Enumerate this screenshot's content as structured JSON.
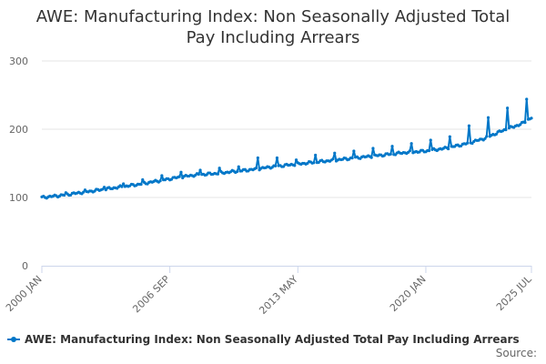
{
  "chart_data": {
    "type": "line",
    "title": "AWE: Manufacturing Index: Non Seasonally Adjusted Total Pay Including Arrears",
    "title_lines": [
      "AWE: Manufacturing Index: Non Seasonally Adjusted Total",
      "Pay Including Arrears"
    ],
    "xlabel": "",
    "ylabel": "",
    "ylim": [
      0,
      300
    ],
    "y_ticks": [
      0,
      100,
      200,
      300
    ],
    "x_range_months": [
      0,
      306
    ],
    "x_ticks": [
      {
        "label": "2000 JAN",
        "month_index": 0
      },
      {
        "label": "2006 SEP",
        "month_index": 80
      },
      {
        "label": "2013 MAY",
        "month_index": 160
      },
      {
        "label": "2020 JAN",
        "month_index": 240
      },
      {
        "label": "2025 JUL",
        "month_index": 306
      }
    ],
    "series": [
      {
        "name": "AWE: Manufacturing Index: Non Seasonally Adjusted Total Pay Including Arrears",
        "color": "#0077c8",
        "start": "2000 JAN",
        "frequency": "monthly",
        "anchors": [
          {
            "month_index": 0,
            "value": 100
          },
          {
            "month_index": 12,
            "value": 103
          },
          {
            "month_index": 24,
            "value": 107
          },
          {
            "month_index": 36,
            "value": 111
          },
          {
            "month_index": 48,
            "value": 115
          },
          {
            "month_index": 60,
            "value": 119
          },
          {
            "month_index": 72,
            "value": 124
          },
          {
            "month_index": 84,
            "value": 129
          },
          {
            "month_index": 96,
            "value": 133
          },
          {
            "month_index": 108,
            "value": 135
          },
          {
            "month_index": 120,
            "value": 138
          },
          {
            "month_index": 132,
            "value": 141
          },
          {
            "month_index": 144,
            "value": 145
          },
          {
            "month_index": 156,
            "value": 148
          },
          {
            "month_index": 168,
            "value": 151
          },
          {
            "month_index": 180,
            "value": 154
          },
          {
            "month_index": 192,
            "value": 157
          },
          {
            "month_index": 204,
            "value": 160
          },
          {
            "month_index": 216,
            "value": 163
          },
          {
            "month_index": 228,
            "value": 166
          },
          {
            "month_index": 240,
            "value": 168
          },
          {
            "month_index": 252,
            "value": 172
          },
          {
            "month_index": 264,
            "value": 178
          },
          {
            "month_index": 276,
            "value": 186
          },
          {
            "month_index": 288,
            "value": 198
          },
          {
            "month_index": 300,
            "value": 208
          },
          {
            "month_index": 306,
            "value": 217
          }
        ],
        "spikes": [
          {
            "month_index": 15,
            "value": 107
          },
          {
            "month_index": 27,
            "value": 111
          },
          {
            "month_index": 39,
            "value": 115
          },
          {
            "month_index": 51,
            "value": 120
          },
          {
            "month_index": 63,
            "value": 126
          },
          {
            "month_index": 75,
            "value": 132
          },
          {
            "month_index": 87,
            "value": 137
          },
          {
            "month_index": 99,
            "value": 140
          },
          {
            "month_index": 111,
            "value": 143
          },
          {
            "month_index": 123,
            "value": 145
          },
          {
            "month_index": 135,
            "value": 158
          },
          {
            "month_index": 147,
            "value": 158
          },
          {
            "month_index": 159,
            "value": 155
          },
          {
            "month_index": 171,
            "value": 162
          },
          {
            "month_index": 183,
            "value": 165
          },
          {
            "month_index": 195,
            "value": 168
          },
          {
            "month_index": 207,
            "value": 172
          },
          {
            "month_index": 219,
            "value": 175
          },
          {
            "month_index": 231,
            "value": 179
          },
          {
            "month_index": 243,
            "value": 184
          },
          {
            "month_index": 255,
            "value": 189
          },
          {
            "month_index": 267,
            "value": 205
          },
          {
            "month_index": 279,
            "value": 217
          },
          {
            "month_index": 291,
            "value": 231
          },
          {
            "month_index": 303,
            "value": 244
          }
        ]
      }
    ],
    "legend": {
      "position": "bottom",
      "label": "AWE: Manufacturing Index: Non Seasonally Adjusted Total Pay Including Arrears"
    },
    "source_label": "Source:"
  }
}
